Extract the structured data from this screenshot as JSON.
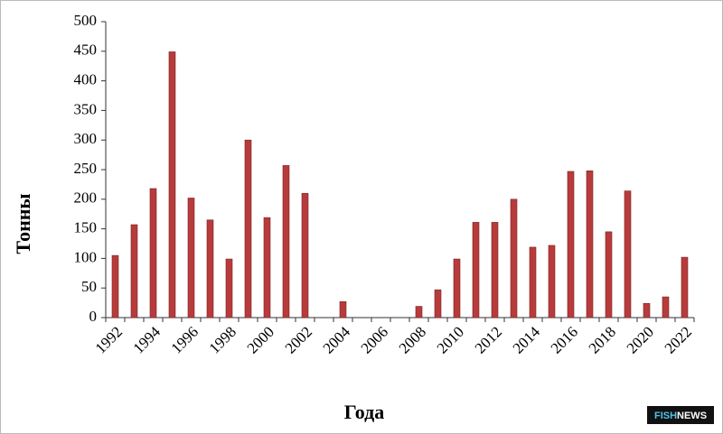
{
  "chart_data": {
    "type": "bar",
    "y_label": "Тонны",
    "x_label": "Года",
    "categories": [
      "1992",
      null,
      "1994",
      null,
      "1996",
      null,
      "1998",
      null,
      "2000",
      null,
      "2002",
      null,
      "2004",
      null,
      "2006",
      null,
      "2008",
      null,
      "2010",
      null,
      "2012",
      null,
      "2014",
      null,
      "2016",
      null,
      "2018",
      null,
      "2020",
      null,
      "2022"
    ],
    "values": [
      105,
      157,
      218,
      449,
      202,
      165,
      99,
      300,
      169,
      257,
      210,
      0,
      27,
      0,
      0,
      0,
      19,
      47,
      99,
      161,
      161,
      200,
      119,
      122,
      247,
      248,
      145,
      214,
      24,
      35,
      102
    ],
    "color": "#b83b3b",
    "ylim": [
      0,
      500
    ],
    "yticks": [
      0,
      50,
      100,
      150,
      200,
      250,
      300,
      350,
      400,
      450,
      500
    ],
    "grid": false,
    "watermark": [
      "FISH",
      "NEWS"
    ]
  }
}
